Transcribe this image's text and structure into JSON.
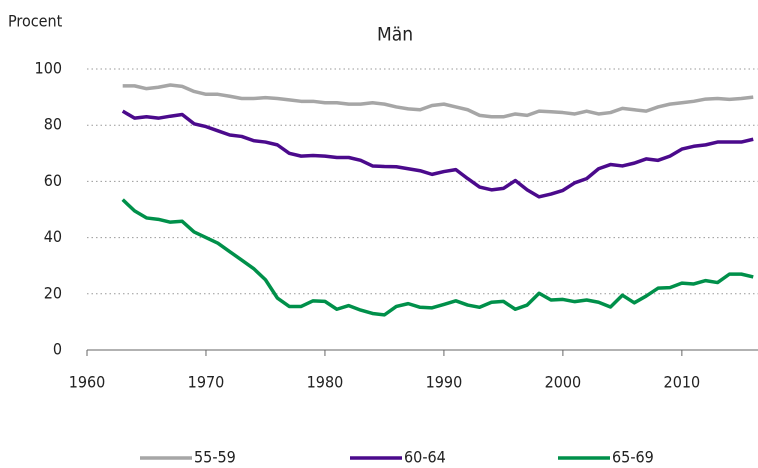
{
  "chart_data": {
    "type": "line",
    "title": "Män",
    "y_label": "Procent",
    "x": [
      1963,
      1964,
      1965,
      1966,
      1967,
      1968,
      1969,
      1970,
      1971,
      1972,
      1973,
      1974,
      1975,
      1976,
      1977,
      1978,
      1979,
      1980,
      1981,
      1982,
      1983,
      1984,
      1985,
      1986,
      1987,
      1988,
      1989,
      1990,
      1991,
      1992,
      1993,
      1994,
      1995,
      1996,
      1997,
      1998,
      1999,
      2000,
      2001,
      2002,
      2003,
      2004,
      2005,
      2006,
      2007,
      2008,
      2009,
      2010,
      2011,
      2012,
      2013,
      2014,
      2015,
      2016
    ],
    "series": [
      {
        "name": "55-59",
        "color": "#a6a6a6",
        "values": [
          94,
          94,
          93,
          93.5,
          94.3,
          93.8,
          92,
          91,
          91,
          90.3,
          89.5,
          89.5,
          89.8,
          89.5,
          89,
          88.5,
          88.5,
          88,
          88,
          87.5,
          87.5,
          88,
          87.5,
          86.5,
          85.8,
          85.5,
          87,
          87.5,
          86.5,
          85.5,
          83.5,
          83,
          83,
          84,
          83.5,
          85,
          84.8,
          84.5,
          84,
          85,
          84,
          84.5,
          86,
          85.5,
          85,
          86.5,
          87.5,
          88,
          88.5,
          89.3,
          89.5,
          89.2,
          89.5,
          90
        ]
      },
      {
        "name": "60-64",
        "color": "#4b0a8c",
        "values": [
          85,
          82.5,
          83,
          82.5,
          83.2,
          83.8,
          80.5,
          79.5,
          78,
          76.5,
          76,
          74.5,
          74,
          73,
          70,
          69,
          69.2,
          69,
          68.5,
          68.5,
          67.5,
          65.5,
          65.3,
          65.2,
          64.5,
          63.8,
          62.5,
          63.5,
          64.2,
          61,
          58,
          57,
          57.5,
          60.3,
          57,
          54.5,
          55.5,
          56.8,
          59.5,
          61,
          64.5,
          66,
          65.5,
          66.5,
          68,
          67.5,
          69,
          71.5,
          72.5,
          73,
          74,
          74,
          74,
          75
        ]
      },
      {
        "name": "65-69",
        "color": "#00904a",
        "values": [
          53.5,
          49.5,
          47,
          46.5,
          45.5,
          45.8,
          42,
          40,
          38,
          35,
          32,
          29,
          25,
          18.5,
          15.5,
          15.5,
          17.5,
          17.3,
          14.5,
          15.8,
          14.2,
          13,
          12.5,
          15.5,
          16.5,
          15.2,
          15,
          16.2,
          17.5,
          16,
          15.2,
          17,
          17.3,
          14.5,
          16,
          20.2,
          17.8,
          18,
          17.2,
          17.8,
          17,
          15.3,
          19.5,
          16.8,
          19.2,
          22,
          22.2,
          23.8,
          23.5,
          24.7,
          24,
          27,
          27,
          26
        ]
      }
    ],
    "xlim": [
      1960,
      2016.4
    ],
    "xticks": [
      1960,
      1970,
      1980,
      1990,
      2000,
      2010
    ],
    "ylim": [
      0,
      100
    ],
    "yticks": [
      0,
      20,
      40,
      60,
      80,
      100
    ],
    "grid": true
  }
}
